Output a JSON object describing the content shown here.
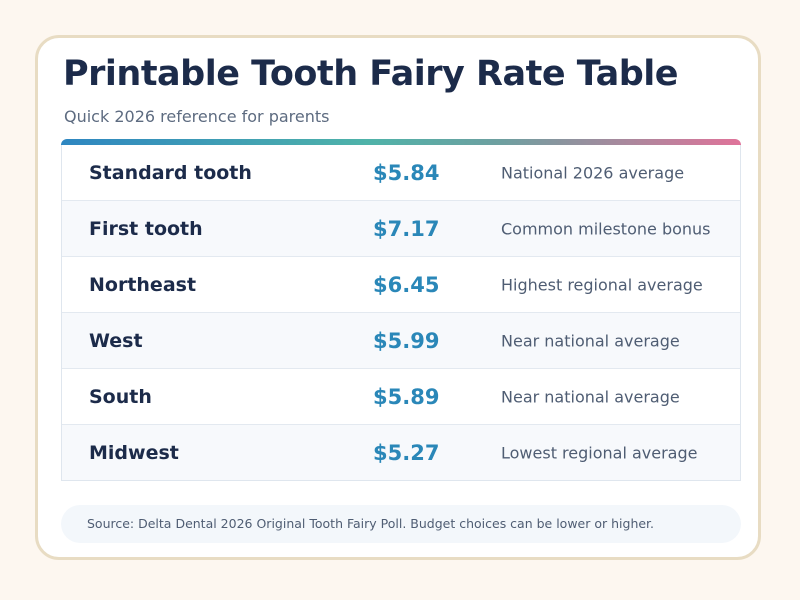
{
  "header": {
    "title": "Printable Tooth Fairy Rate Table",
    "subtitle": "Quick 2026 reference for parents"
  },
  "accent_colors": {
    "title": "#1c2b4a",
    "value": "#2a87b8",
    "gradient": [
      "#2e86c1",
      "#4fb3a9",
      "#e0739a"
    ],
    "card_border": "#e8dcc3",
    "background": "#fdf7f0"
  },
  "table": {
    "rows": [
      {
        "label": "Standard tooth",
        "value": "$5.84",
        "note": "National 2026 average"
      },
      {
        "label": "First tooth",
        "value": "$7.17",
        "note": "Common milestone bonus"
      },
      {
        "label": "Northeast",
        "value": "$6.45",
        "note": "Highest regional average"
      },
      {
        "label": "West",
        "value": "$5.99",
        "note": "Near national average"
      },
      {
        "label": "South",
        "value": "$5.89",
        "note": "Near national average"
      },
      {
        "label": "Midwest",
        "value": "$5.27",
        "note": "Lowest regional average"
      }
    ]
  },
  "footer": {
    "source": "Source: Delta Dental 2026 Original Tooth Fairy Poll. Budget choices can be lower or higher."
  }
}
